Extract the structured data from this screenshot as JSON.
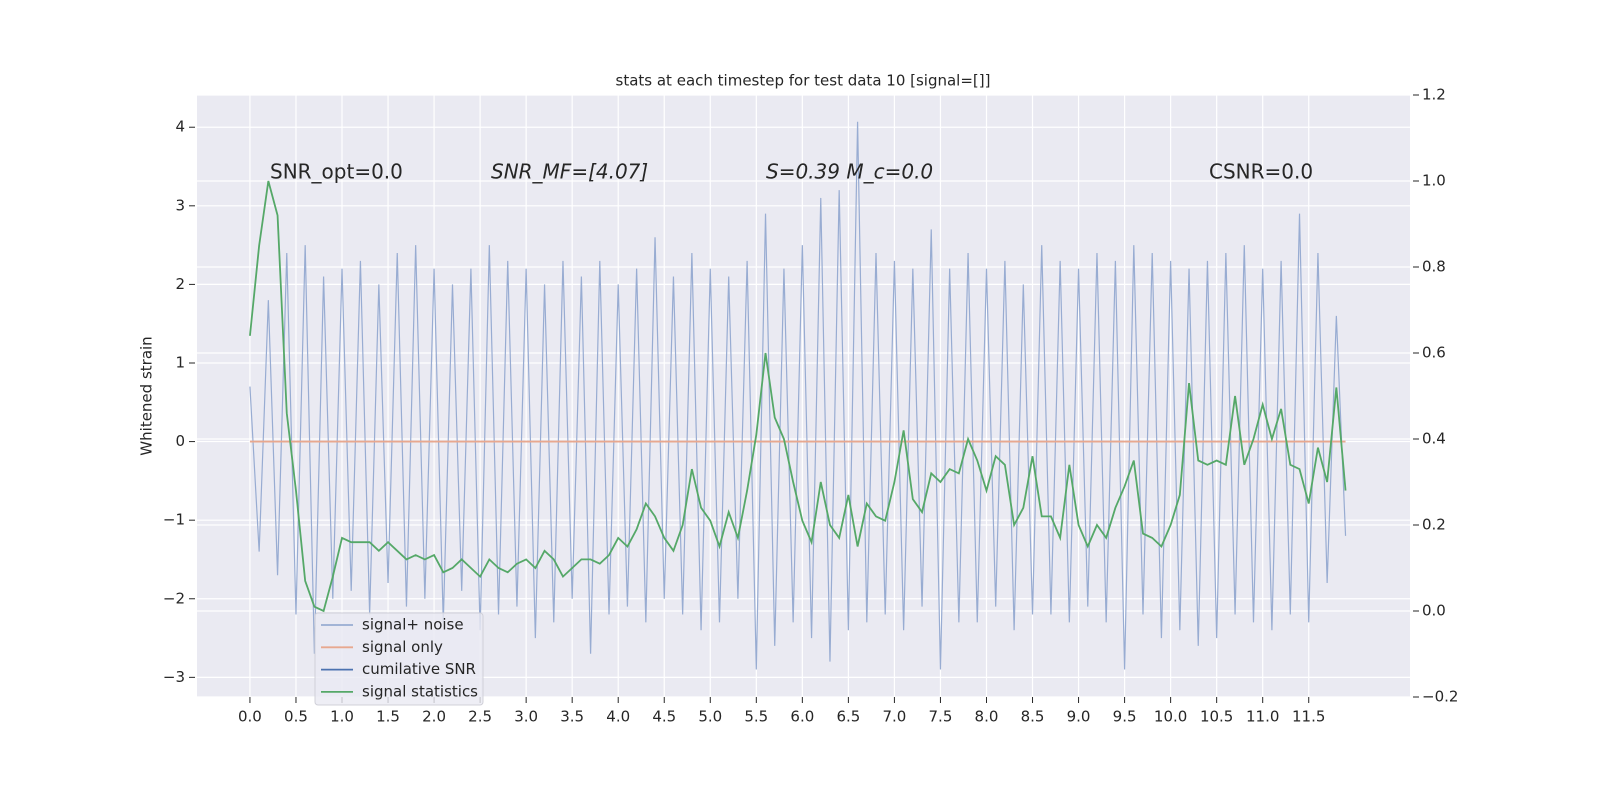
{
  "chart_data": {
    "type": "line",
    "title": "stats at each timestep for test data 10 [signal=[]]",
    "ylabel": "Whitened strain",
    "annotations": [
      "SNR_opt=0.0",
      "SNR_MF=[4.07]",
      "S=0.39  M_c=0.0",
      "CSNR=0.0"
    ],
    "grid": true,
    "legend": "lower left",
    "xlim": [
      -0.575,
      12.6
    ],
    "ylim": [
      -3.25,
      4.41
    ],
    "y2lim": [
      -0.2,
      1.2
    ],
    "xticks": [
      {
        "value": 0,
        "label": "0.0"
      },
      {
        "value": 0.5,
        "label": "0.5"
      },
      {
        "value": 1,
        "label": "1.0"
      },
      {
        "value": 1.5,
        "label": "1.5"
      },
      {
        "value": 2,
        "label": "2.0"
      },
      {
        "value": 2.5,
        "label": "2.5"
      },
      {
        "value": 3,
        "label": "3.0"
      },
      {
        "value": 3.5,
        "label": "3.5"
      },
      {
        "value": 4,
        "label": "4.0"
      },
      {
        "value": 4.5,
        "label": "4.5"
      },
      {
        "value": 5,
        "label": "5.0"
      },
      {
        "value": 5.5,
        "label": "5.5"
      },
      {
        "value": 6,
        "label": "6.0"
      },
      {
        "value": 6.5,
        "label": "6.5"
      },
      {
        "value": 7,
        "label": "7.0"
      },
      {
        "value": 7.5,
        "label": "7.5"
      },
      {
        "value": 8,
        "label": "8.0"
      },
      {
        "value": 8.5,
        "label": "8.5"
      },
      {
        "value": 9,
        "label": "9.0"
      },
      {
        "value": 9.5,
        "label": "9.5"
      },
      {
        "value": 10,
        "label": "10.0"
      },
      {
        "value": 10.5,
        "label": "10.5"
      },
      {
        "value": 11,
        "label": "11.0"
      },
      {
        "value": 11.5,
        "label": "11.5"
      }
    ],
    "yticks": [
      {
        "value": -3,
        "label": "−3"
      },
      {
        "value": -2,
        "label": "−2"
      },
      {
        "value": -1,
        "label": "−1"
      },
      0,
      1,
      2,
      3,
      4
    ],
    "y2ticks": [
      {
        "value": -0.2,
        "label": "−0.2"
      },
      {
        "value": 0,
        "label": "0.0"
      },
      0.2,
      0.4,
      0.6,
      0.8,
      {
        "value": 1,
        "label": "1.0"
      },
      1.2
    ],
    "x": [
      0,
      0.1,
      0.2,
      0.3,
      0.4,
      0.5,
      0.6,
      0.7,
      0.8,
      0.9,
      1,
      1.1,
      1.2,
      1.3,
      1.4,
      1.5,
      1.6,
      1.7,
      1.8,
      1.9,
      2,
      2.1,
      2.2,
      2.3,
      2.4,
      2.5,
      2.6,
      2.7,
      2.8,
      2.9,
      3,
      3.1,
      3.2,
      3.3,
      3.4,
      3.5,
      3.6,
      3.7,
      3.8,
      3.9,
      4,
      4.1,
      4.2,
      4.3,
      4.4,
      4.5,
      4.6,
      4.7,
      4.8,
      4.9,
      5,
      5.1,
      5.2,
      5.3,
      5.4,
      5.5,
      5.6,
      5.7,
      5.8,
      5.9,
      6,
      6.1,
      6.2,
      6.3,
      6.4,
      6.5,
      6.6,
      6.7,
      6.8,
      6.9,
      7,
      7.1,
      7.2,
      7.3,
      7.4,
      7.5,
      7.6,
      7.7,
      7.8,
      7.9,
      8,
      8.1,
      8.2,
      8.3,
      8.4,
      8.5,
      8.6,
      8.7,
      8.8,
      8.9,
      9,
      9.1,
      9.2,
      9.3,
      9.4,
      9.5,
      9.6,
      9.7,
      9.8,
      9.9,
      10,
      10.1,
      10.2,
      10.3,
      10.4,
      10.5,
      10.6,
      10.7,
      10.8,
      10.9,
      11,
      11.1,
      11.2,
      11.3,
      11.4,
      11.5,
      11.6,
      11.7,
      11.8,
      11.9
    ],
    "series": [
      {
        "name": "signal+ noise",
        "color": "#98acd2",
        "values": [
          0.7,
          -1.4,
          1.8,
          -1.7,
          2.4,
          -2.2,
          2.5,
          -2.7,
          2.1,
          -2.0,
          2.2,
          -1.9,
          2.3,
          -2.2,
          2.0,
          -1.8,
          2.4,
          -2.1,
          2.5,
          -2.0,
          2.2,
          -2.3,
          2.0,
          -1.9,
          2.2,
          -2.4,
          2.5,
          -2.2,
          2.3,
          -2.1,
          2.2,
          -2.5,
          2.0,
          -2.3,
          2.3,
          -2.0,
          2.1,
          -2.7,
          2.3,
          -2.2,
          2.0,
          -2.1,
          2.2,
          -2.3,
          2.6,
          -2.0,
          2.1,
          -2.2,
          2.4,
          -2.4,
          2.2,
          -2.3,
          2.1,
          -2.0,
          2.3,
          -2.9,
          2.9,
          -2.6,
          2.2,
          -2.3,
          2.5,
          -2.5,
          3.1,
          -2.8,
          3.2,
          -2.4,
          4.07,
          -2.3,
          2.4,
          -2.2,
          2.3,
          -2.4,
          2.2,
          -2.1,
          2.7,
          -2.9,
          2.2,
          -2.3,
          2.4,
          -2.3,
          2.2,
          -2.1,
          2.3,
          -2.4,
          2.0,
          -2.2,
          2.5,
          -2.2,
          2.3,
          -2.3,
          2.2,
          -2.1,
          2.4,
          -2.3,
          2.3,
          -2.9,
          2.5,
          -2.2,
          2.4,
          -2.5,
          2.3,
          -2.4,
          2.2,
          -2.6,
          2.3,
          -2.5,
          2.4,
          -2.2,
          2.5,
          -2.3,
          2.2,
          -2.4,
          2.3,
          -2.2,
          2.9,
          -2.3,
          2.4,
          -1.8,
          1.6,
          -1.2
        ]
      },
      {
        "name": "signal only",
        "color": "#e8a88f",
        "values": [
          0,
          0,
          0,
          0,
          0,
          0,
          0,
          0,
          0,
          0,
          0,
          0,
          0,
          0,
          0,
          0,
          0,
          0,
          0,
          0,
          0,
          0,
          0,
          0,
          0,
          0,
          0,
          0,
          0,
          0,
          0,
          0,
          0,
          0,
          0,
          0,
          0,
          0,
          0,
          0,
          0,
          0,
          0,
          0,
          0,
          0,
          0,
          0,
          0,
          0,
          0,
          0,
          0,
          0,
          0,
          0,
          0,
          0,
          0,
          0,
          0,
          0,
          0,
          0,
          0,
          0,
          0,
          0,
          0,
          0,
          0,
          0,
          0,
          0,
          0,
          0,
          0,
          0,
          0,
          0,
          0,
          0,
          0,
          0,
          0,
          0,
          0,
          0,
          0,
          0,
          0,
          0,
          0,
          0,
          0,
          0,
          0,
          0,
          0,
          0,
          0,
          0,
          0,
          0,
          0,
          0,
          0,
          0,
          0,
          0,
          0,
          0,
          0,
          0,
          0,
          0,
          0,
          0,
          0,
          0
        ]
      },
      {
        "name": "cumilative SNR",
        "color": "#4c72b0",
        "axis": "y2",
        "values": [
          null,
          null,
          null,
          null,
          null,
          null,
          null,
          null,
          null,
          null,
          null,
          null,
          null,
          null,
          null,
          null,
          null,
          null,
          null,
          null,
          null,
          null,
          null,
          null,
          null,
          null,
          null,
          null,
          null,
          null,
          null,
          null,
          null,
          null,
          null,
          null,
          null,
          null,
          null,
          null,
          null,
          null,
          null,
          null,
          null,
          null,
          null,
          null,
          null,
          null,
          null,
          null,
          null,
          null,
          null,
          null,
          null,
          null,
          null,
          null,
          null,
          null,
          null,
          null,
          null,
          null,
          null,
          null,
          null,
          null,
          null,
          null,
          null,
          null,
          null,
          null,
          null,
          null,
          null,
          null,
          null,
          null,
          null,
          null,
          null,
          null,
          null,
          null,
          null,
          null,
          null,
          null,
          null,
          null,
          null,
          null,
          null,
          null,
          null,
          null,
          null,
          null,
          null,
          null,
          null,
          null,
          null,
          null,
          null,
          null,
          null,
          null,
          null,
          null,
          null,
          null,
          null,
          null,
          null,
          null
        ]
      },
      {
        "name": "signal statistics",
        "color": "#55a868",
        "axis": "y2",
        "values": [
          0.64,
          0.85,
          1.0,
          0.92,
          0.46,
          0.28,
          0.07,
          0.01,
          0.0,
          0.08,
          0.17,
          0.16,
          0.16,
          0.16,
          0.14,
          0.16,
          0.14,
          0.12,
          0.13,
          0.12,
          0.13,
          0.09,
          0.1,
          0.12,
          0.1,
          0.08,
          0.12,
          0.1,
          0.09,
          0.11,
          0.12,
          0.1,
          0.14,
          0.12,
          0.08,
          0.1,
          0.12,
          0.12,
          0.11,
          0.13,
          0.17,
          0.15,
          0.19,
          0.25,
          0.22,
          0.17,
          0.14,
          0.2,
          0.33,
          0.24,
          0.21,
          0.15,
          0.23,
          0.17,
          0.28,
          0.41,
          0.6,
          0.45,
          0.4,
          0.3,
          0.21,
          0.16,
          0.3,
          0.2,
          0.17,
          0.27,
          0.15,
          0.25,
          0.22,
          0.21,
          0.3,
          0.42,
          0.26,
          0.23,
          0.32,
          0.3,
          0.33,
          0.32,
          0.4,
          0.35,
          0.28,
          0.36,
          0.34,
          0.2,
          0.24,
          0.36,
          0.22,
          0.22,
          0.17,
          0.34,
          0.2,
          0.15,
          0.2,
          0.17,
          0.24,
          0.29,
          0.35,
          0.18,
          0.17,
          0.15,
          0.2,
          0.27,
          0.53,
          0.35,
          0.34,
          0.35,
          0.34,
          0.5,
          0.34,
          0.4,
          0.48,
          0.4,
          0.47,
          0.34,
          0.33,
          0.25,
          0.38,
          0.3,
          0.52,
          0.28
        ]
      }
    ]
  }
}
